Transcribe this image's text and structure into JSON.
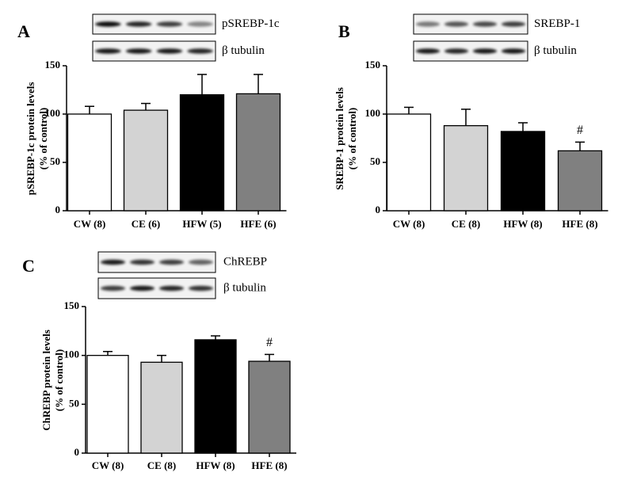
{
  "chart_data": [
    {
      "type": "bar",
      "panel": "A",
      "blot_labels": [
        "pSREBP-1c",
        "β tubulin"
      ],
      "ylabel": [
        "pSREBP-1c protein levels",
        "(% of control)"
      ],
      "categories": [
        "CW (8)",
        "CE (6)",
        "HFW (5)",
        "HFE (6)"
      ],
      "values": [
        100,
        104,
        120,
        121
      ],
      "errors": [
        8,
        7,
        21,
        20
      ],
      "colors": [
        "#ffffff",
        "#d3d3d3",
        "#000000",
        "#808080"
      ],
      "ylim": [
        0,
        150
      ],
      "yticks": [
        0,
        50,
        100,
        150
      ]
    },
    {
      "type": "bar",
      "panel": "B",
      "blot_labels": [
        "SREBP-1",
        "β tubulin"
      ],
      "ylabel": [
        "SREBP-1 protein levels",
        "(% of control)"
      ],
      "categories": [
        "CW (8)",
        "CE (8)",
        "HFW (8)",
        "HFE (8)"
      ],
      "values": [
        100,
        88,
        82,
        62
      ],
      "errors": [
        7,
        17,
        9,
        9
      ],
      "colors": [
        "#ffffff",
        "#d3d3d3",
        "#000000",
        "#808080"
      ],
      "annotations": [
        {
          "category": "HFE (8)",
          "text": "#"
        }
      ],
      "ylim": [
        0,
        150
      ],
      "yticks": [
        0,
        50,
        100,
        150
      ]
    },
    {
      "type": "bar",
      "panel": "C",
      "blot_labels": [
        "ChREBP",
        "β tubulin"
      ],
      "ylabel": [
        "ChREBP protein levels",
        "(% of control)"
      ],
      "categories": [
        "CW (8)",
        "CE (8)",
        "HFW (8)",
        "HFE (8)"
      ],
      "values": [
        100,
        93,
        116,
        94
      ],
      "errors": [
        4,
        7,
        4,
        7
      ],
      "colors": [
        "#ffffff",
        "#d3d3d3",
        "#000000",
        "#808080"
      ],
      "annotations": [
        {
          "category": "HFE (8)",
          "text": "#"
        }
      ],
      "ylim": [
        0,
        150
      ],
      "yticks": [
        0,
        50,
        100,
        150
      ]
    }
  ]
}
